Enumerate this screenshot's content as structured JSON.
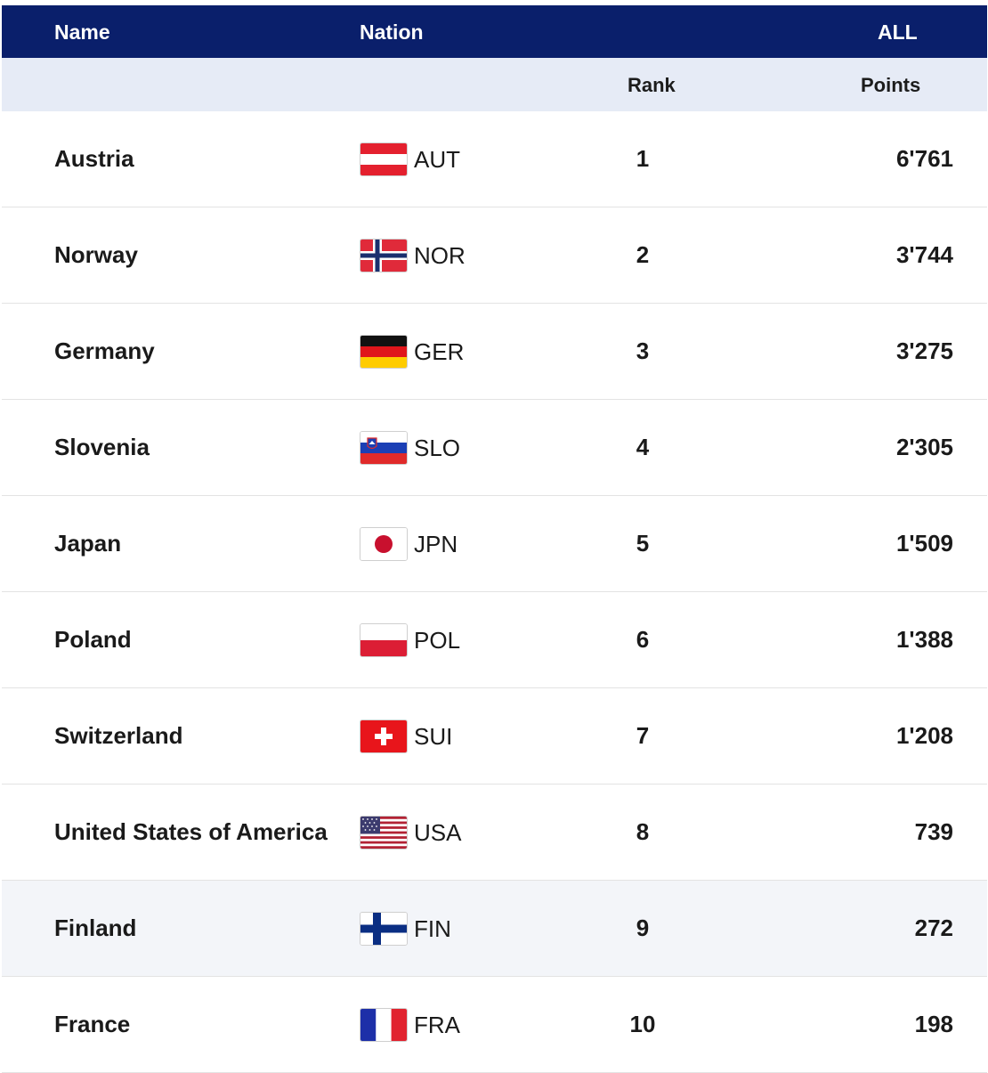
{
  "header": {
    "name": "Name",
    "nation": "Nation",
    "all": "ALL",
    "rank": "Rank",
    "points": "Points"
  },
  "rows": [
    {
      "name": "Austria",
      "code": "AUT",
      "rank": "1",
      "points": "6'761",
      "flag": "austria-flag-icon"
    },
    {
      "name": "Norway",
      "code": "NOR",
      "rank": "2",
      "points": "3'744",
      "flag": "norway-flag-icon"
    },
    {
      "name": "Germany",
      "code": "GER",
      "rank": "3",
      "points": "3'275",
      "flag": "germany-flag-icon"
    },
    {
      "name": "Slovenia",
      "code": "SLO",
      "rank": "4",
      "points": "2'305",
      "flag": "slovenia-flag-icon"
    },
    {
      "name": "Japan",
      "code": "JPN",
      "rank": "5",
      "points": "1'509",
      "flag": "japan-flag-icon"
    },
    {
      "name": "Poland",
      "code": "POL",
      "rank": "6",
      "points": "1'388",
      "flag": "poland-flag-icon"
    },
    {
      "name": "Switzerland",
      "code": "SUI",
      "rank": "7",
      "points": "1'208",
      "flag": "switzerland-flag-icon"
    },
    {
      "name": "United States of America",
      "code": "USA",
      "rank": "8",
      "points": "739",
      "flag": "usa-flag-icon"
    },
    {
      "name": "Finland",
      "code": "FIN",
      "rank": "9",
      "points": "272",
      "flag": "finland-flag-icon"
    },
    {
      "name": "France",
      "code": "FRA",
      "rank": "10",
      "points": "198",
      "flag": "france-flag-icon"
    }
  ],
  "colors": {
    "header_bg": "#0a1f6b",
    "subheader_bg": "#e6ebf6",
    "highlight_row_bg": "#f3f5f9"
  }
}
